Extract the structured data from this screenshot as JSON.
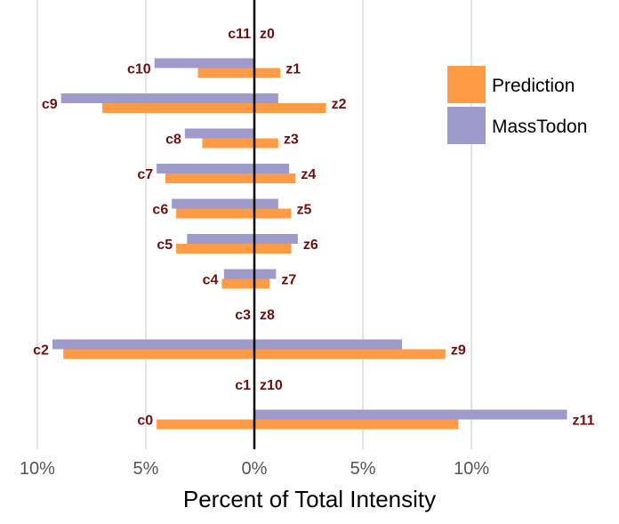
{
  "chart_data": {
    "type": "bar",
    "orientation": "horizontal-diverging",
    "title": "",
    "xlabel": "Percent of Total Intensity",
    "ylabel": "",
    "xlim": [
      -10,
      14.5
    ],
    "x_ticks": [
      {
        "value": -10,
        "label": "10%"
      },
      {
        "value": -5,
        "label": "5%"
      },
      {
        "value": 0,
        "label": "0%"
      },
      {
        "value": 5,
        "label": "5%"
      },
      {
        "value": 10,
        "label": "10%"
      }
    ],
    "grid": "vertical-major",
    "legend": {
      "position": "top-right"
    },
    "colors": {
      "Prediction": "#FF9B45",
      "MassTodon": "#9E9ACC",
      "label_text": "#6E0F0F",
      "zero_line": "#000000",
      "grid": "#E3E3E3",
      "tick_text": "#555555"
    },
    "rows": [
      {
        "left_label": "c11",
        "right_label": "z0",
        "prediction_left": 0,
        "prediction_right": 0,
        "masstodon_left": 0,
        "masstodon_right": 0
      },
      {
        "left_label": "c10",
        "right_label": "z1",
        "prediction_left": 2.6,
        "prediction_right": 1.2,
        "masstodon_left": 4.6,
        "masstodon_right": 0
      },
      {
        "left_label": "c9",
        "right_label": "z2",
        "prediction_left": 7.0,
        "prediction_right": 3.3,
        "masstodon_left": 8.9,
        "masstodon_right": 1.1
      },
      {
        "left_label": "c8",
        "right_label": "z3",
        "prediction_left": 2.4,
        "prediction_right": 1.1,
        "masstodon_left": 3.2,
        "masstodon_right": 0
      },
      {
        "left_label": "c7",
        "right_label": "z4",
        "prediction_left": 4.1,
        "prediction_right": 1.9,
        "masstodon_left": 4.5,
        "masstodon_right": 1.6
      },
      {
        "left_label": "c6",
        "right_label": "z5",
        "prediction_left": 3.6,
        "prediction_right": 1.7,
        "masstodon_left": 3.8,
        "masstodon_right": 1.1
      },
      {
        "left_label": "c5",
        "right_label": "z6",
        "prediction_left": 3.6,
        "prediction_right": 1.7,
        "masstodon_left": 3.1,
        "masstodon_right": 2.0
      },
      {
        "left_label": "c4",
        "right_label": "z7",
        "prediction_left": 1.5,
        "prediction_right": 0.7,
        "masstodon_left": 1.4,
        "masstodon_right": 1.0
      },
      {
        "left_label": "c3",
        "right_label": "z8",
        "prediction_left": 0,
        "prediction_right": 0,
        "masstodon_left": 0,
        "masstodon_right": 0
      },
      {
        "left_label": "c2",
        "right_label": "z9",
        "prediction_left": 8.8,
        "prediction_right": 8.8,
        "masstodon_left": 9.3,
        "masstodon_right": 6.8
      },
      {
        "left_label": "c1",
        "right_label": "z10",
        "prediction_left": 0,
        "prediction_right": 0,
        "masstodon_left": 0,
        "masstodon_right": 0
      },
      {
        "left_label": "c0",
        "right_label": "z11",
        "prediction_left": 4.5,
        "prediction_right": 9.4,
        "masstodon_left": 0,
        "masstodon_right": 14.4
      }
    ],
    "series": [
      {
        "name": "Prediction"
      },
      {
        "name": "MassTodon"
      }
    ]
  }
}
